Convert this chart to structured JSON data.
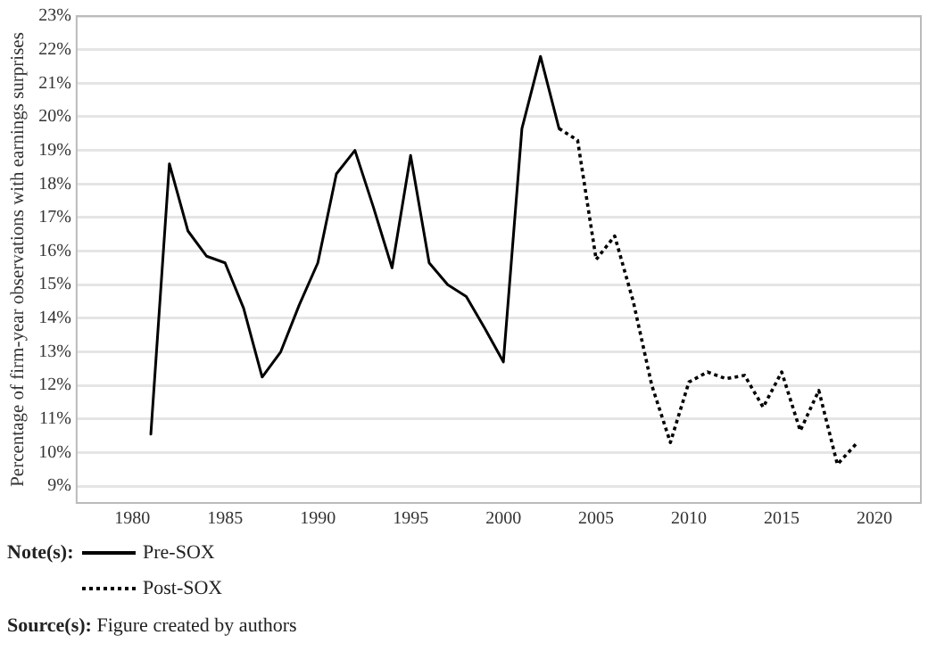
{
  "chart_data": {
    "type": "line",
    "ylabel": "Percentage of firm-year observations with earnings surprises",
    "legend_title": "Note(s):",
    "legend": "bottom left",
    "grid": "y",
    "marker": "none",
    "xlim": [
      1977,
      2022.5
    ],
    "xticks": [
      1980,
      1985,
      1990,
      1995,
      2000,
      2005,
      2010,
      2015,
      2020
    ],
    "ylim": [
      8.5,
      23
    ],
    "yticks": [
      {
        "value": 9,
        "label": "9%"
      },
      {
        "value": 10,
        "label": "10%"
      },
      {
        "value": 11,
        "label": "11%"
      },
      {
        "value": 12,
        "label": "12%"
      },
      {
        "value": 13,
        "label": "13%"
      },
      {
        "value": 14,
        "label": "14%"
      },
      {
        "value": 15,
        "label": "15%"
      },
      {
        "value": 16,
        "label": "16%"
      },
      {
        "value": 17,
        "label": "17%"
      },
      {
        "value": 18,
        "label": "18%"
      },
      {
        "value": 19,
        "label": "19%"
      },
      {
        "value": 20,
        "label": "20%"
      },
      {
        "value": 21,
        "label": "21%"
      },
      {
        "value": 22,
        "label": "22%"
      },
      {
        "value": 23,
        "label": "23%"
      }
    ],
    "series": [
      {
        "name": "Pre-SOX",
        "color": "#000000",
        "line_style": "solid",
        "x": [
          1981,
          1982,
          1983,
          1984,
          1985,
          1986,
          1987,
          1988,
          1989,
          1990,
          1991,
          1992,
          1993,
          1994,
          1995,
          1996,
          1997,
          1998,
          1999,
          2000,
          2001,
          2002,
          2003
        ],
        "values": [
          10.55,
          18.6,
          16.6,
          15.85,
          15.65,
          14.3,
          12.25,
          13.0,
          14.4,
          15.65,
          18.3,
          19.0,
          17.3,
          15.5,
          18.85,
          15.65,
          15.0,
          14.65,
          13.7,
          12.7,
          19.65,
          21.8,
          19.65
        ]
      },
      {
        "name": "Post-SOX",
        "color": "#000000",
        "line_style": "dotted",
        "x": [
          2003,
          2004,
          2005,
          2006,
          2007,
          2008,
          2009,
          2010,
          2011,
          2012,
          2013,
          2014,
          2015,
          2016,
          2017,
          2018,
          2019
        ],
        "values": [
          19.65,
          19.3,
          15.75,
          16.45,
          14.5,
          12.0,
          10.3,
          12.1,
          12.4,
          12.2,
          12.3,
          11.35,
          12.4,
          10.65,
          11.85,
          9.65,
          10.25
        ]
      }
    ],
    "annotations": [
      "Source(s): Figure created by authors"
    ]
  }
}
